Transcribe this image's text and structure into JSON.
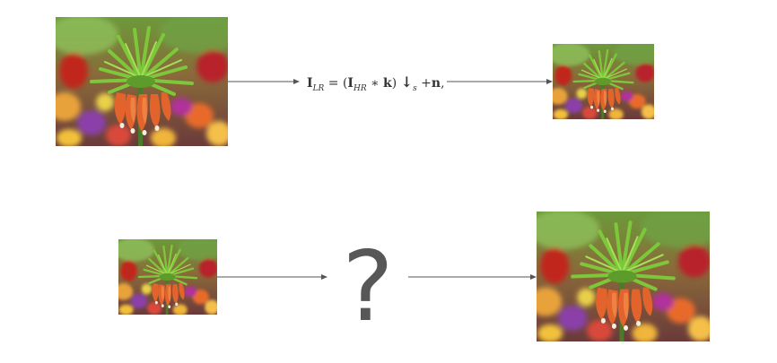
{
  "diagram": {
    "top_row": {
      "source_image": {
        "label": "high-resolution-flower-image"
      },
      "equation": {
        "lhs": "I",
        "lhs_sub": "LR",
        "eq": " = (",
        "hr": "I",
        "hr_sub": "HR",
        "conv": " ∗ ",
        "kernel": "k",
        "close": ") ",
        "down": "↓",
        "down_sub": "s",
        "plus": " +",
        "noise": "n",
        "comma": ","
      },
      "result_image": {
        "label": "low-resolution-flower-image"
      }
    },
    "bottom_row": {
      "source_image": {
        "label": "low-resolution-flower-image"
      },
      "question_mark": "?",
      "result_image": {
        "label": "high-resolution-flower-image"
      }
    }
  },
  "colors": {
    "arrow": "#555555",
    "question": "#575757",
    "flower_orange": "#e2632b",
    "leaf_green": "#6cbf2a"
  }
}
